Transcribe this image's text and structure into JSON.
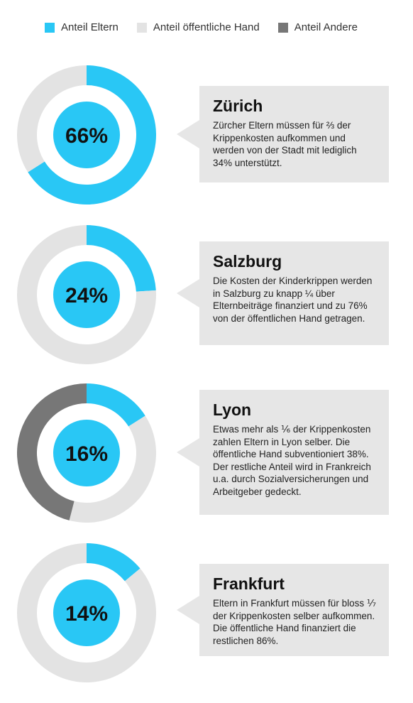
{
  "colors": {
    "eltern": "#29c7f5",
    "oeffentlich": "#e3e3e3",
    "andere": "#777777",
    "center": "#29c7f5"
  },
  "legend": {
    "items": [
      {
        "label": "Anteil Eltern",
        "color": "#29c7f5"
      },
      {
        "label": "Anteil öffentliche Hand",
        "color": "#e3e3e3"
      },
      {
        "label": "Anteil Andere",
        "color": "#777777"
      }
    ]
  },
  "chart_data": [
    {
      "type": "pie",
      "center_label": "66%",
      "slices": [
        {
          "category": "Anteil Eltern",
          "value": 66,
          "color": "#29c7f5"
        },
        {
          "category": "Anteil öffentliche Hand",
          "value": 34,
          "color": "#e3e3e3"
        }
      ],
      "title": "Zürich",
      "text": "Zürcher Eltern müssen für ⅔ der Krippenkosten aufkommen und werden von der Stadt mit ledig­lich 34% unterstützt."
    },
    {
      "type": "pie",
      "center_label": "24%",
      "slices": [
        {
          "category": "Anteil Eltern",
          "value": 24,
          "color": "#29c7f5"
        },
        {
          "category": "Anteil öffentliche Hand",
          "value": 76,
          "color": "#e3e3e3"
        }
      ],
      "title": "Salzburg",
      "text": "Die Kosten der Kinderkrippen werden in Salzburg zu knapp ¼ über Elternbeiträge finanziert und zu 76% von der öffentlichen Hand getragen."
    },
    {
      "type": "pie",
      "center_label": "16%",
      "slices": [
        {
          "category": "Anteil Eltern",
          "value": 16,
          "color": "#29c7f5"
        },
        {
          "category": "Anteil öffentliche Hand",
          "value": 38,
          "color": "#e3e3e3"
        },
        {
          "category": "Anteil Andere",
          "value": 46,
          "color": "#777777"
        }
      ],
      "title": "Lyon",
      "text": "Etwas mehr als ⅙ der Krippen­kosten zahlen Eltern in Lyon selber. Die öffentliche Hand sub­ventioniert 38%. Der restliche Anteil wird in Frankreich u.a. durch Sozialversicherungen und Arbeitgeber gedeckt."
    },
    {
      "type": "pie",
      "center_label": "14%",
      "slices": [
        {
          "category": "Anteil Eltern",
          "value": 14,
          "color": "#29c7f5"
        },
        {
          "category": "Anteil öffentliche Hand",
          "value": 86,
          "color": "#e3e3e3"
        }
      ],
      "title": "Frankfurt",
      "text": "Eltern in Frankfurt müssen für bloss ⅐ der Krippenkosten selber aufkommen. Die öffentliche Hand finanziert die restlichen 86%."
    }
  ]
}
